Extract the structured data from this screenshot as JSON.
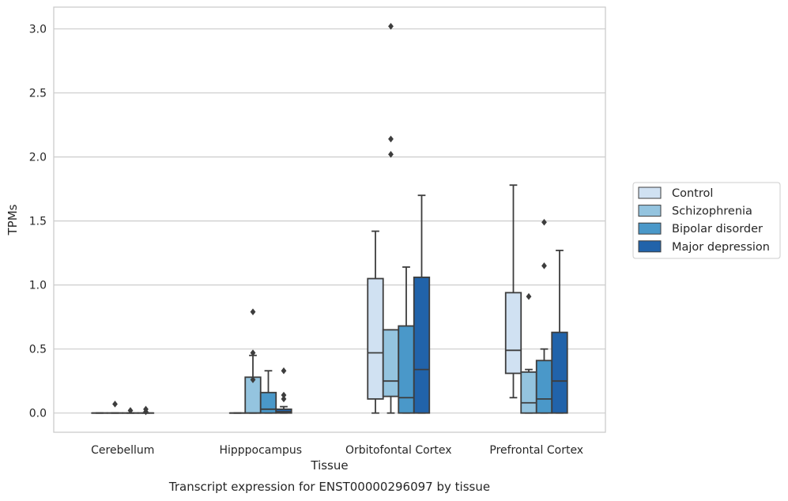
{
  "chart_data": {
    "type": "box",
    "title": "",
    "caption": "Transcript expression for ENST00000296097 by tissue",
    "xlabel": "Tissue",
    "ylabel": "TPMs",
    "ylim": [
      -0.15,
      3.17
    ],
    "yticks": [
      0.0,
      0.5,
      1.0,
      1.5,
      2.0,
      2.5,
      3.0
    ],
    "ytick_labels": [
      "0.0",
      "0.5",
      "1.0",
      "1.5",
      "2.0",
      "2.5",
      "3.0"
    ],
    "grid": "horizontal",
    "legend_position": "right",
    "categories": [
      "Cerebellum",
      "Hipppocampus",
      "Orbitofontal Cortex",
      "Prefrontal Cortex"
    ],
    "series": [
      {
        "name": "Control",
        "color": "#d0e1f2",
        "boxes": [
          {
            "min": 0.0,
            "q1": 0.0,
            "median": 0.0,
            "q3": 0.0,
            "max": 0.0,
            "outliers": []
          },
          {
            "min": 0.0,
            "q1": 0.0,
            "median": 0.0,
            "q3": 0.0,
            "max": 0.0,
            "outliers": []
          },
          {
            "min": 0.0,
            "q1": 0.11,
            "median": 0.47,
            "q3": 1.05,
            "max": 1.42,
            "outliers": []
          },
          {
            "min": 0.12,
            "q1": 0.31,
            "median": 0.49,
            "q3": 0.94,
            "max": 1.78,
            "outliers": []
          }
        ]
      },
      {
        "name": "Schizophrenia",
        "color": "#94c4df",
        "boxes": [
          {
            "min": 0.0,
            "q1": 0.0,
            "median": 0.0,
            "q3": 0.0,
            "max": 0.0,
            "outliers": [
              0.07
            ]
          },
          {
            "min": 0.0,
            "q1": 0.0,
            "median": 0.0,
            "q3": 0.28,
            "max": 0.45,
            "outliers": [
              0.47,
              0.26,
              0.79
            ]
          },
          {
            "min": 0.0,
            "q1": 0.13,
            "median": 0.25,
            "q3": 0.65,
            "max": 0.65,
            "outliers": [
              3.02,
              2.14,
              2.02
            ]
          },
          {
            "min": 0.0,
            "q1": 0.0,
            "median": 0.08,
            "q3": 0.32,
            "max": 0.34,
            "outliers": [
              0.91
            ]
          }
        ]
      },
      {
        "name": "Bipolar disorder",
        "color": "#4a98c9",
        "boxes": [
          {
            "min": 0.0,
            "q1": 0.0,
            "median": 0.0,
            "q3": 0.0,
            "max": 0.0,
            "outliers": [
              0.02
            ]
          },
          {
            "min": 0.0,
            "q1": 0.0,
            "median": 0.03,
            "q3": 0.16,
            "max": 0.33,
            "outliers": []
          },
          {
            "min": 0.0,
            "q1": 0.0,
            "median": 0.12,
            "q3": 0.68,
            "max": 1.14,
            "outliers": []
          },
          {
            "min": 0.0,
            "q1": 0.0,
            "median": 0.11,
            "q3": 0.41,
            "max": 0.5,
            "outliers": [
              1.49,
              1.15
            ]
          }
        ]
      },
      {
        "name": "Major depression",
        "color": "#2163aa",
        "boxes": [
          {
            "min": 0.0,
            "q1": 0.0,
            "median": 0.0,
            "q3": 0.0,
            "max": 0.0,
            "outliers": [
              0.01,
              0.03
            ]
          },
          {
            "min": 0.0,
            "q1": 0.0,
            "median": 0.01,
            "q3": 0.03,
            "max": 0.05,
            "outliers": [
              0.33,
              0.14,
              0.11
            ]
          },
          {
            "min": 0.0,
            "q1": 0.0,
            "median": 0.34,
            "q3": 1.06,
            "max": 1.7,
            "outliers": []
          },
          {
            "min": 0.0,
            "q1": 0.0,
            "median": 0.25,
            "q3": 0.63,
            "max": 1.27,
            "outliers": []
          }
        ]
      }
    ]
  }
}
